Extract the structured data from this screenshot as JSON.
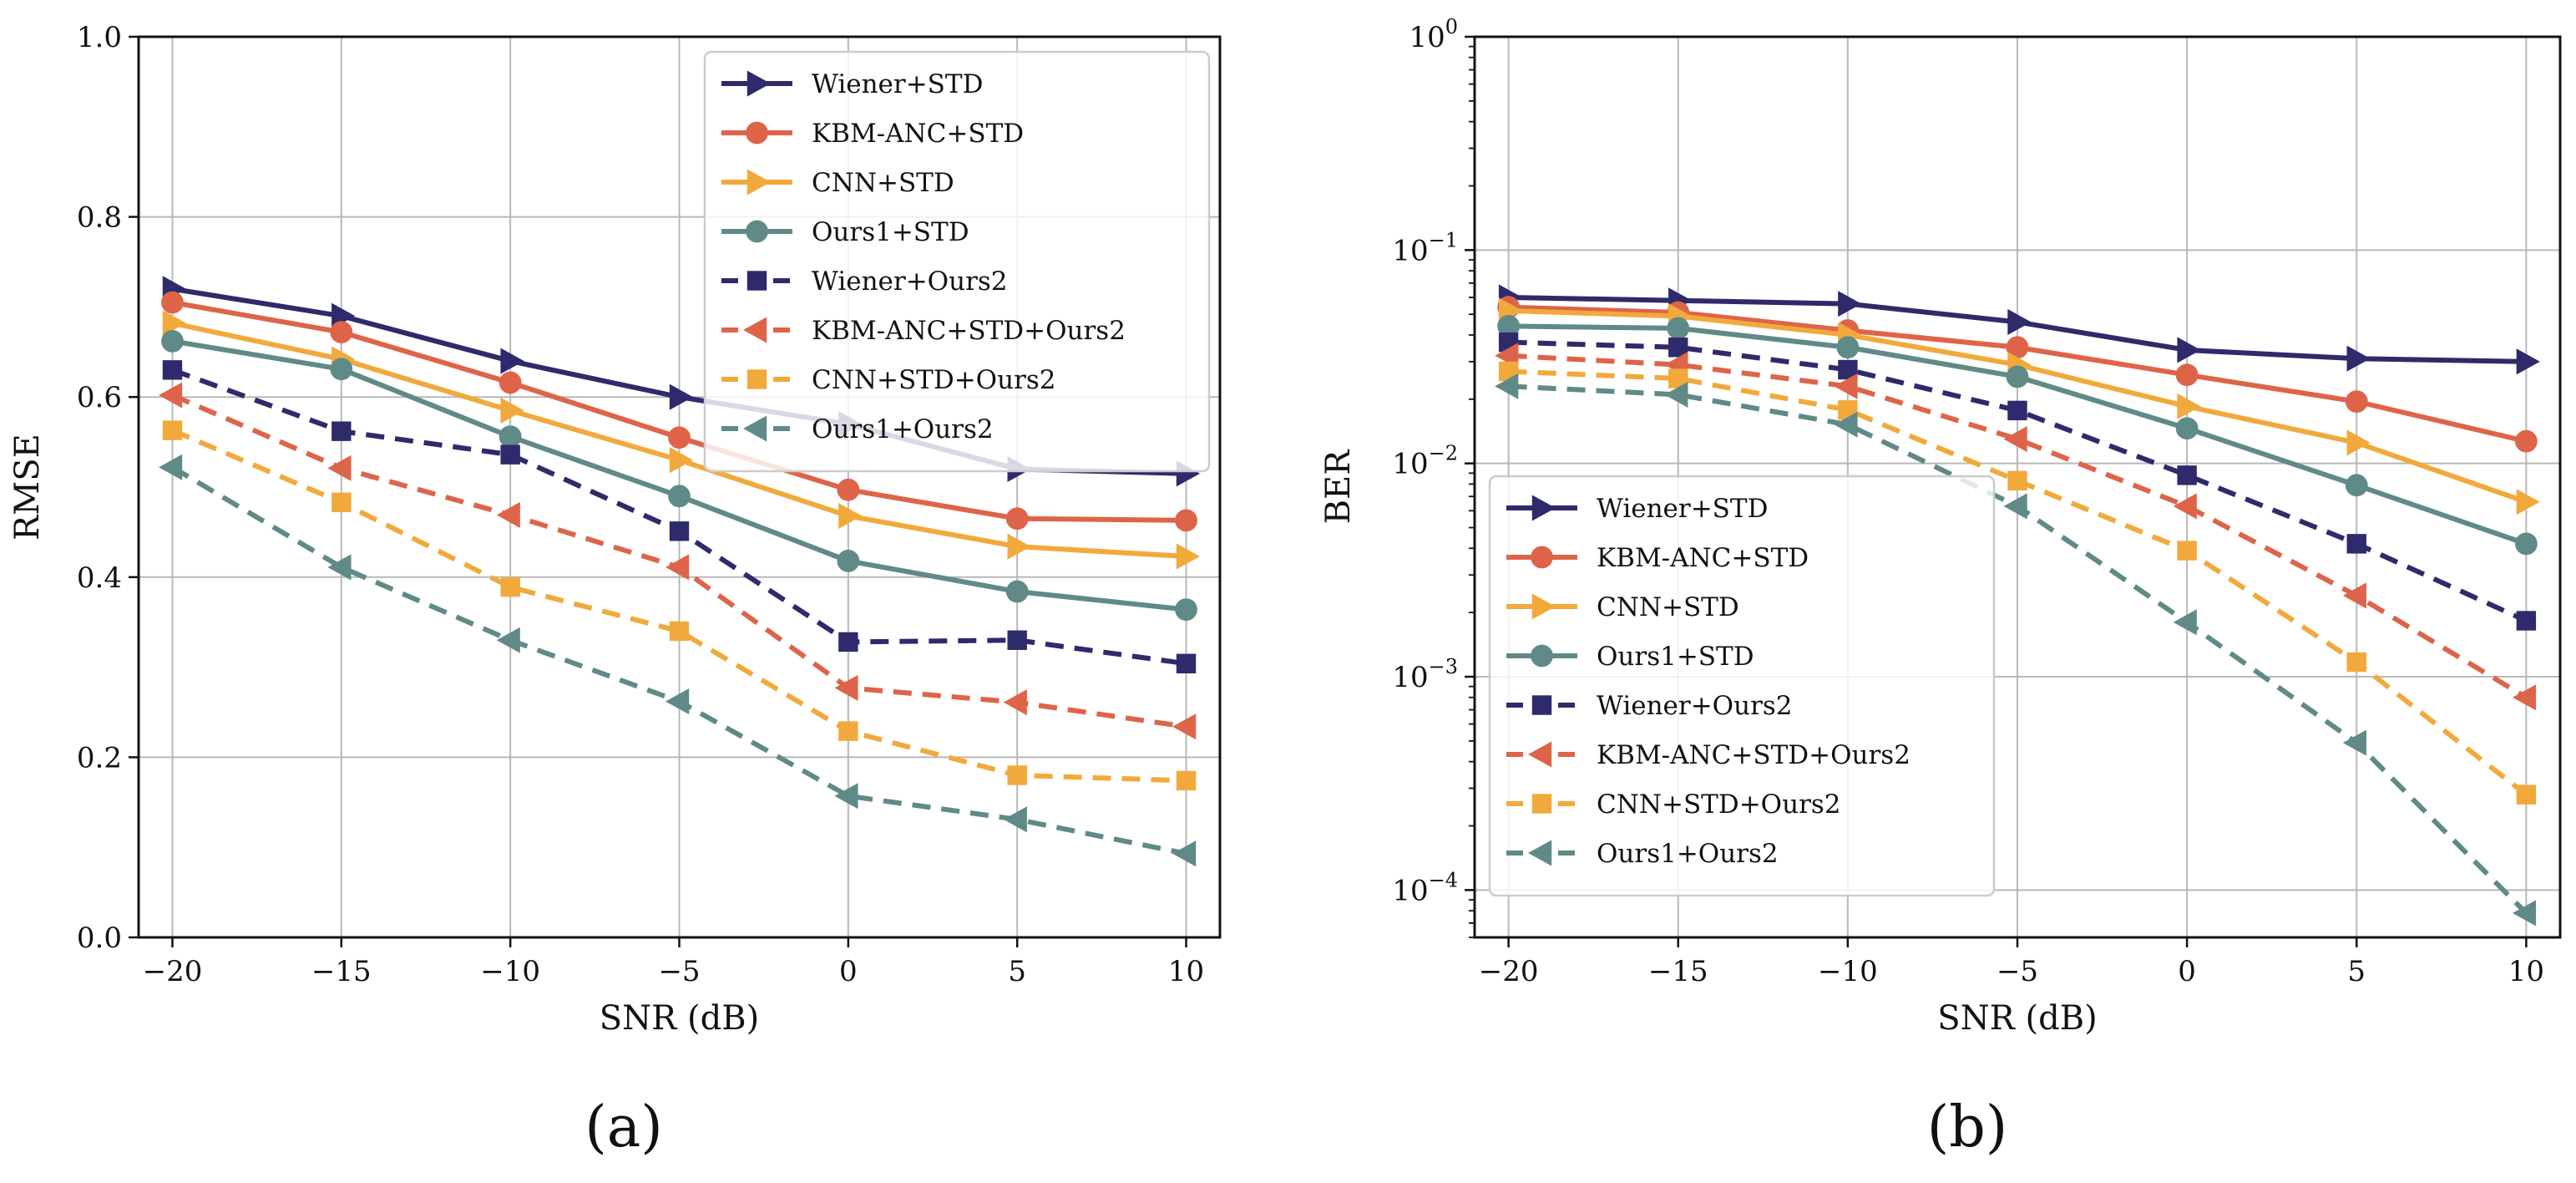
{
  "figure": {
    "panel_a_label": "(a)",
    "panel_b_label": "(b)"
  },
  "colors": {
    "wiener": "#2f2a6b",
    "kbm": "#de6449",
    "cnn": "#f2a93b",
    "ours1": "#5f8a87"
  },
  "chart_data": [
    {
      "type": "line",
      "title": "",
      "xlabel": "SNR (dB)",
      "ylabel": "RMSE",
      "xlim": [
        -21,
        11
      ],
      "ylim": [
        0,
        1
      ],
      "yscale": "linear",
      "grid": true,
      "legend_position": "top-right",
      "x": [
        -20,
        -15,
        -10,
        -5,
        0,
        5,
        10
      ],
      "x_tick_labels": [
        "−20",
        "−15",
        "−10",
        "−5",
        "0",
        "5",
        "10"
      ],
      "y_ticks": [
        0,
        0.2,
        0.4,
        0.6,
        0.8,
        1.0
      ],
      "y_tick_labels": [
        "0.0",
        "0.2",
        "0.4",
        "0.6",
        "0.8",
        "1.0"
      ],
      "series": [
        {
          "name": "Wiener+STD",
          "color": "wiener",
          "dash": "solid",
          "marker": "triangle-right",
          "values": [
            0.72,
            0.69,
            0.64,
            0.6,
            0.57,
            0.52,
            0.515
          ]
        },
        {
          "name": "KBM-ANC+STD",
          "color": "kbm",
          "dash": "solid",
          "marker": "circle",
          "values": [
            0.705,
            0.672,
            0.616,
            0.555,
            0.497,
            0.465,
            0.463
          ]
        },
        {
          "name": "CNN+STD",
          "color": "cnn",
          "dash": "solid",
          "marker": "triangle-right",
          "values": [
            0.682,
            0.642,
            0.585,
            0.53,
            0.468,
            0.434,
            0.423
          ]
        },
        {
          "name": "Ours1+STD",
          "color": "ours1",
          "dash": "solid",
          "marker": "circle",
          "values": [
            0.662,
            0.631,
            0.556,
            0.49,
            0.418,
            0.384,
            0.364
          ]
        },
        {
          "name": "Wiener+Ours2",
          "color": "wiener",
          "dash": "dashed",
          "marker": "square",
          "values": [
            0.63,
            0.562,
            0.536,
            0.451,
            0.328,
            0.33,
            0.304
          ]
        },
        {
          "name": "KBM-ANC+STD+Ours2",
          "color": "kbm",
          "dash": "dashed",
          "marker": "triangle-left",
          "values": [
            0.602,
            0.521,
            0.469,
            0.411,
            0.277,
            0.261,
            0.234
          ]
        },
        {
          "name": "CNN+STD+Ours2",
          "color": "cnn",
          "dash": "dashed",
          "marker": "square",
          "values": [
            0.563,
            0.483,
            0.389,
            0.34,
            0.229,
            0.18,
            0.174
          ]
        },
        {
          "name": "Ours1+Ours2",
          "color": "ours1",
          "dash": "dashed",
          "marker": "triangle-left",
          "values": [
            0.522,
            0.411,
            0.33,
            0.262,
            0.157,
            0.131,
            0.093
          ]
        }
      ]
    },
    {
      "type": "line",
      "title": "",
      "xlabel": "SNR (dB)",
      "ylabel": "BER",
      "xlim": [
        -21,
        11
      ],
      "ylim": [
        6e-05,
        1
      ],
      "yscale": "log",
      "grid": true,
      "legend_position": "lower-left",
      "x": [
        -20,
        -15,
        -10,
        -5,
        0,
        5,
        10
      ],
      "x_tick_labels": [
        "−20",
        "−15",
        "−10",
        "−5",
        "0",
        "5",
        "10"
      ],
      "y_ticks": [
        0.0001,
        0.001,
        0.01,
        0.1,
        1
      ],
      "y_tick_bases": [
        "10",
        "10",
        "10",
        "10",
        "10"
      ],
      "y_tick_exps": [
        "−4",
        "−3",
        "−2",
        "−1",
        "0"
      ],
      "series": [
        {
          "name": "Wiener+STD",
          "color": "wiener",
          "dash": "solid",
          "marker": "triangle-right",
          "values": [
            0.06,
            0.058,
            0.056,
            0.046,
            0.034,
            0.031,
            0.03
          ]
        },
        {
          "name": "KBM-ANC+STD",
          "color": "kbm",
          "dash": "solid",
          "marker": "circle",
          "values": [
            0.054,
            0.051,
            0.042,
            0.035,
            0.026,
            0.0195,
            0.0127
          ]
        },
        {
          "name": "CNN+STD",
          "color": "cnn",
          "dash": "solid",
          "marker": "triangle-right",
          "values": [
            0.052,
            0.049,
            0.04,
            0.029,
            0.0185,
            0.0125,
            0.0066
          ]
        },
        {
          "name": "Ours1+STD",
          "color": "ours1",
          "dash": "solid",
          "marker": "circle",
          "values": [
            0.044,
            0.043,
            0.035,
            0.0255,
            0.0146,
            0.0079,
            0.0042
          ]
        },
        {
          "name": "Wiener+Ours2",
          "color": "wiener",
          "dash": "dashed",
          "marker": "square",
          "values": [
            0.037,
            0.035,
            0.0275,
            0.0177,
            0.0088,
            0.0042,
            0.00183
          ]
        },
        {
          "name": "KBM-ANC+STD+Ours2",
          "color": "kbm",
          "dash": "dashed",
          "marker": "triangle-left",
          "values": [
            0.032,
            0.029,
            0.023,
            0.013,
            0.0063,
            0.0024,
            0.0008
          ]
        },
        {
          "name": "CNN+STD+Ours2",
          "color": "cnn",
          "dash": "dashed",
          "marker": "square",
          "values": [
            0.027,
            0.025,
            0.0178,
            0.0083,
            0.0039,
            0.00117,
            0.00028
          ]
        },
        {
          "name": "Ours1+Ours2",
          "color": "ours1",
          "dash": "dashed",
          "marker": "triangle-left",
          "values": [
            0.023,
            0.021,
            0.0152,
            0.0063,
            0.0018,
            0.00049,
            7.8e-05
          ]
        }
      ]
    }
  ]
}
